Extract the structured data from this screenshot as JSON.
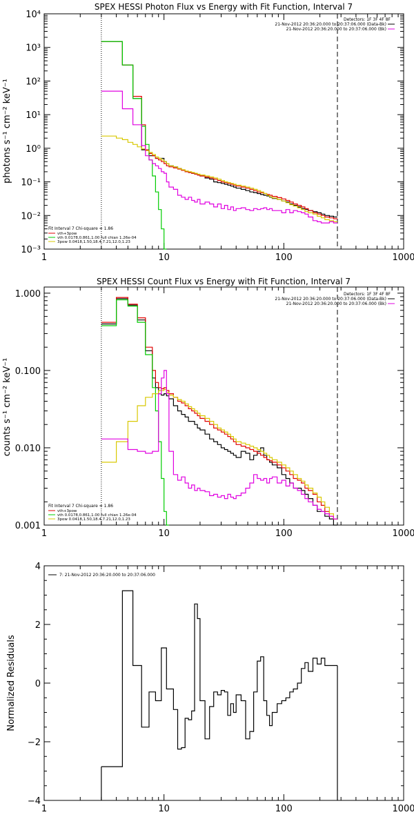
{
  "chart_data": [
    {
      "type": "line",
      "title": "SPEX HESSI Photon Flux vs Energy with Fit Function, Interval 7",
      "ylabel": "photons s⁻¹ cm⁻² keV⁻¹",
      "xlabel": "",
      "xscale": "log",
      "yscale": "log",
      "xlim": [
        1,
        1000
      ],
      "ylim": [
        0.001,
        10000
      ],
      "xticklabels": [
        "1",
        "10",
        "100",
        "1000"
      ],
      "yticklabels": [
        "10⁻³",
        "10⁻²",
        "10⁻¹",
        "10⁰",
        "10¹",
        "10²",
        "10³",
        "10⁴"
      ],
      "vlines": [
        3.0,
        280
      ],
      "legend_top_right": {
        "header": "Detectors: 1F 3F 4F 8F",
        "entries": [
          {
            "label": "21-Nov-2012 20:36:20.000 to 20:37:06.000 (Data-Bk)",
            "color": "#000000"
          },
          {
            "label": "21-Nov-2012 20:36:20.000 to 20:37:06.000 (Bk)",
            "color": "#e000e0"
          }
        ]
      },
      "legend_bottom_left": {
        "header": "Fit Interval 7   Chi-square = 1.86",
        "entries": [
          {
            "label": "vth+3pow",
            "color": "#e00000"
          },
          {
            "label": "vth 0.0178,0.861,1.00  full chian 1.26e-04",
            "color": "#00cc00"
          },
          {
            "label": "3pow 0.0418,1.50,18.4,7.21,12.0,1.23",
            "color": "#d8c800"
          }
        ]
      },
      "edges": [
        3.0,
        3.5,
        4.0,
        4.5,
        5.0,
        5.5,
        6.0,
        6.5,
        7.0,
        7.5,
        8.0,
        8.5,
        9.0,
        9.5,
        10.0,
        10.5,
        11.0,
        12.0,
        13.0,
        14.0,
        15.0,
        16.0,
        17.0,
        18.0,
        19.0,
        20.0,
        22.0,
        24.0,
        26.0,
        28.0,
        30.0,
        32.0,
        34.0,
        36.0,
        38.0,
        40.0,
        44.0,
        48.0,
        52.0,
        56.0,
        60.0,
        64.0,
        68.0,
        72.0,
        76.0,
        80.0,
        88.0,
        96.0,
        104.0,
        112.0,
        120.0,
        130.0,
        140.0,
        150.0,
        160.0,
        175.0,
        190.0,
        205.0,
        220.0,
        240.0,
        260.0,
        280.0
      ],
      "series": [
        {
          "name": "Data-Bk",
          "color": "#000000",
          "values": [
            1500,
            1500,
            1500,
            300,
            300,
            30,
            30,
            0.9,
            0.9,
            0.6,
            0.6,
            0.5,
            0.5,
            0.5,
            0.4,
            0.35,
            0.3,
            0.28,
            0.25,
            0.22,
            0.2,
            0.19,
            0.18,
            0.17,
            0.16,
            0.15,
            0.13,
            0.12,
            0.1,
            0.095,
            0.09,
            0.085,
            0.08,
            0.075,
            0.07,
            0.065,
            0.06,
            0.055,
            0.05,
            0.048,
            0.045,
            0.042,
            0.04,
            0.038,
            0.035,
            0.032,
            0.03,
            0.027,
            0.025,
            0.022,
            0.02,
            0.018,
            0.016,
            0.015,
            0.014,
            0.013,
            0.012,
            0.011,
            0.01,
            0.0095,
            0.009
          ]
        },
        {
          "name": "vth+3pow",
          "color": "#e00000",
          "values": [
            1500,
            1500,
            1500,
            300,
            300,
            35,
            35,
            5,
            0.9,
            0.7,
            0.6,
            0.5,
            0.45,
            0.4,
            0.35,
            0.3,
            0.28,
            0.26,
            0.24,
            0.22,
            0.2,
            0.19,
            0.18,
            0.17,
            0.16,
            0.15,
            0.14,
            0.13,
            0.12,
            0.11,
            0.1,
            0.095,
            0.09,
            0.085,
            0.08,
            0.075,
            0.07,
            0.065,
            0.06,
            0.055,
            0.05,
            0.048,
            0.045,
            0.042,
            0.04,
            0.037,
            0.034,
            0.031,
            0.028,
            0.025,
            0.022,
            0.02,
            0.018,
            0.016,
            0.014,
            0.012,
            0.011,
            0.01,
            0.009,
            0.0085,
            0.008
          ]
        },
        {
          "name": "vth",
          "color": "#00cc00",
          "values": [
            1500,
            1500,
            1500,
            300,
            300,
            30,
            30,
            4.5,
            1.3,
            0.45,
            0.15,
            0.05,
            0.015,
            0.004,
            0.001
          ]
        },
        {
          "name": "3pow",
          "color": "#d8c800",
          "values": [
            2.3,
            2.3,
            2.0,
            1.8,
            1.5,
            1.3,
            1.1,
            0.95,
            0.85,
            0.75,
            0.65,
            0.55,
            0.5,
            0.45,
            0.4,
            0.35,
            0.3,
            0.28,
            0.25,
            0.23,
            0.21,
            0.2,
            0.19,
            0.18,
            0.17,
            0.16,
            0.15,
            0.14,
            0.13,
            0.12,
            0.11,
            0.1,
            0.095,
            0.09,
            0.085,
            0.08,
            0.075,
            0.07,
            0.065,
            0.06,
            0.055,
            0.05,
            0.045,
            0.04,
            0.036,
            0.033,
            0.03,
            0.027,
            0.024,
            0.021,
            0.019,
            0.017,
            0.015,
            0.013,
            0.012,
            0.011,
            0.0095,
            0.0085,
            0.0075,
            0.007,
            0.0065
          ]
        },
        {
          "name": "Bk",
          "color": "#e000e0",
          "values": [
            50,
            50,
            50,
            15,
            15,
            5,
            5,
            1.2,
            0.6,
            0.45,
            0.35,
            0.3,
            0.25,
            0.2,
            0.18,
            0.1,
            0.07,
            0.06,
            0.04,
            0.035,
            0.03,
            0.035,
            0.028,
            0.025,
            0.03,
            0.022,
            0.025,
            0.022,
            0.018,
            0.022,
            0.016,
            0.02,
            0.015,
            0.018,
            0.014,
            0.016,
            0.017,
            0.015,
            0.014,
            0.016,
            0.015,
            0.016,
            0.017,
            0.015,
            0.016,
            0.014,
            0.014,
            0.012,
            0.015,
            0.012,
            0.014,
            0.013,
            0.012,
            0.011,
            0.009,
            0.007,
            0.0065,
            0.006,
            0.006,
            0.0065,
            0.006
          ]
        }
      ]
    },
    {
      "type": "line",
      "title": "SPEX HESSI Count Flux vs Energy with Fit Function, Interval 7",
      "ylabel": "counts s⁻¹ cm⁻² keV⁻¹",
      "xlabel": "",
      "xscale": "log",
      "yscale": "log",
      "xlim": [
        1,
        1000
      ],
      "ylim": [
        0.001,
        1.2
      ],
      "xticklabels": [
        "1",
        "10",
        "100",
        "1000"
      ],
      "yticklabels": [
        "0.001",
        "0.010",
        "0.100",
        "1.000"
      ],
      "vlines": [
        3.0,
        280
      ],
      "legend_top_right": {
        "header": "Detectors: 1F 3F 4F 8F",
        "entries": [
          {
            "label": "21-Nov-2012 20:36:20.000 to 20:37:06.000 (Data-Bk)",
            "color": "#000000"
          },
          {
            "label": "21-Nov-2012 20:36:20.000 to 20:37:06.000 (Bk)",
            "color": "#e000e0"
          }
        ]
      },
      "legend_bottom_left": {
        "header": "Fit Interval 7   Chi-square = 1.86",
        "entries": [
          {
            "label": "vth+3pow",
            "color": "#e00000"
          },
          {
            "label": "vth 0.0178,0.861,1.00  full chian 1.26e-04",
            "color": "#00cc00"
          },
          {
            "label": "3pow 0.0418,1.50,18.4,7.21,12.0,1.23",
            "color": "#d8c800"
          }
        ]
      },
      "edges": [
        3.0,
        3.5,
        4.0,
        4.5,
        5.0,
        5.5,
        6.0,
        6.5,
        7.0,
        7.5,
        8.0,
        8.5,
        9.0,
        9.5,
        10.0,
        10.5,
        11.0,
        12.0,
        13.0,
        14.0,
        15.0,
        16.0,
        17.0,
        18.0,
        19.0,
        20.0,
        22.0,
        24.0,
        26.0,
        28.0,
        30.0,
        32.0,
        34.0,
        36.0,
        38.0,
        40.0,
        44.0,
        48.0,
        52.0,
        56.0,
        60.0,
        64.0,
        68.0,
        72.0,
        76.0,
        80.0,
        88.0,
        96.0,
        104.0,
        112.0,
        120.0,
        130.0,
        140.0,
        150.0,
        160.0,
        175.0,
        190.0,
        205.0,
        220.0,
        240.0,
        260.0,
        280.0
      ],
      "series": [
        {
          "name": "Data-Bk",
          "color": "#000000",
          "values": [
            0.4,
            0.4,
            0.85,
            0.85,
            0.7,
            0.7,
            0.45,
            0.45,
            0.18,
            0.18,
            0.08,
            0.06,
            0.05,
            0.048,
            0.05,
            0.047,
            0.043,
            0.035,
            0.03,
            0.027,
            0.025,
            0.022,
            0.022,
            0.02,
            0.018,
            0.017,
            0.015,
            0.013,
            0.012,
            0.011,
            0.01,
            0.0095,
            0.009,
            0.0085,
            0.008,
            0.0075,
            0.009,
            0.0085,
            0.007,
            0.008,
            0.009,
            0.01,
            0.008,
            0.007,
            0.0065,
            0.006,
            0.0055,
            0.0045,
            0.004,
            0.0035,
            0.003,
            0.003,
            0.0028,
            0.0025,
            0.0022,
            0.0018,
            0.0015,
            0.0015,
            0.0013,
            0.0012,
            0.001
          ]
        },
        {
          "name": "vth+3pow",
          "color": "#e00000",
          "values": [
            0.42,
            0.42,
            0.88,
            0.88,
            0.72,
            0.72,
            0.48,
            0.48,
            0.2,
            0.2,
            0.1,
            0.07,
            0.06,
            0.058,
            0.06,
            0.055,
            0.05,
            0.045,
            0.04,
            0.038,
            0.035,
            0.032,
            0.03,
            0.028,
            0.026,
            0.024,
            0.022,
            0.02,
            0.018,
            0.017,
            0.016,
            0.015,
            0.014,
            0.013,
            0.012,
            0.011,
            0.0105,
            0.01,
            0.0095,
            0.009,
            0.0085,
            0.008,
            0.0075,
            0.007,
            0.0068,
            0.0065,
            0.006,
            0.0055,
            0.005,
            0.0045,
            0.004,
            0.0038,
            0.0035,
            0.003,
            0.0028,
            0.0025,
            0.002,
            0.0018,
            0.0015,
            0.0013,
            0.0012
          ]
        },
        {
          "name": "vth",
          "color": "#00cc00",
          "values": [
            0.38,
            0.38,
            0.82,
            0.82,
            0.68,
            0.68,
            0.42,
            0.42,
            0.16,
            0.16,
            0.06,
            0.03,
            0.012,
            0.004,
            0.0015,
            0.001
          ]
        },
        {
          "name": "3pow",
          "color": "#d8c800",
          "values": [
            0.0065,
            0.0065,
            0.012,
            0.012,
            0.022,
            0.022,
            0.035,
            0.035,
            0.045,
            0.045,
            0.05,
            0.05,
            0.055,
            0.055,
            0.057,
            0.052,
            0.048,
            0.045,
            0.042,
            0.04,
            0.037,
            0.034,
            0.032,
            0.03,
            0.028,
            0.026,
            0.024,
            0.022,
            0.02,
            0.018,
            0.017,
            0.016,
            0.015,
            0.014,
            0.013,
            0.012,
            0.0115,
            0.011,
            0.0105,
            0.01,
            0.0095,
            0.009,
            0.0085,
            0.008,
            0.0075,
            0.007,
            0.0065,
            0.006,
            0.0055,
            0.005,
            0.0045,
            0.004,
            0.0037,
            0.0033,
            0.003,
            0.0026,
            0.0023,
            0.002,
            0.0017,
            0.0014,
            0.0012
          ]
        },
        {
          "name": "Bk",
          "color": "#e000e0",
          "values": [
            0.013,
            0.013,
            0.013,
            0.013,
            0.0095,
            0.0095,
            0.009,
            0.009,
            0.0085,
            0.0085,
            0.009,
            0.009,
            0.05,
            0.08,
            0.1,
            0.05,
            0.009,
            0.0045,
            0.0038,
            0.0042,
            0.0035,
            0.003,
            0.0033,
            0.0028,
            0.003,
            0.0028,
            0.0027,
            0.0024,
            0.0025,
            0.0023,
            0.0024,
            0.0022,
            0.0025,
            0.0023,
            0.0022,
            0.0024,
            0.0026,
            0.003,
            0.0035,
            0.0045,
            0.004,
            0.0038,
            0.004,
            0.0035,
            0.004,
            0.0042,
            0.0035,
            0.0038,
            0.0032,
            0.0035,
            0.003,
            0.0028,
            0.0025,
            0.0022,
            0.002,
            0.0018,
            0.0016,
            0.0015,
            0.0014,
            0.0013,
            0.0012
          ]
        }
      ]
    },
    {
      "type": "line",
      "title": "",
      "ylabel": "Normalized Residuals",
      "xlabel": "",
      "xscale": "log",
      "yscale": "linear",
      "xlim": [
        1,
        1000
      ],
      "ylim": [
        -4,
        4
      ],
      "xticklabels": [
        "1",
        "10",
        "100",
        "1000"
      ],
      "yticklabels": [
        "−4",
        "−2",
        "0",
        "2",
        "4"
      ],
      "legend_top_left": {
        "entries": [
          {
            "label": "7: 21-Nov-2012 20:36:20.000 to 20:37:06.000",
            "color": "#000000"
          }
        ]
      },
      "edges": [
        3.0,
        3.5,
        4.0,
        4.5,
        5.0,
        5.5,
        6.0,
        6.5,
        7.0,
        7.5,
        8.0,
        8.5,
        9.0,
        9.5,
        10.0,
        10.5,
        11.0,
        12.0,
        13.0,
        14.0,
        15.0,
        16.0,
        17.0,
        18.0,
        19.0,
        20.0,
        22.0,
        24.0,
        26.0,
        28.0,
        30.0,
        32.0,
        34.0,
        36.0,
        38.0,
        40.0,
        44.0,
        48.0,
        52.0,
        56.0,
        60.0,
        64.0,
        68.0,
        72.0,
        76.0,
        80.0,
        88.0,
        96.0,
        104.0,
        112.0,
        120.0,
        130.0,
        140.0,
        150.0,
        160.0,
        175.0,
        190.0,
        205.0,
        220.0,
        240.0,
        260.0,
        280.0
      ],
      "series": [
        {
          "name": "7: 21-Nov-2012 20:36:20.000 to 20:37:06.000",
          "color": "#000000",
          "values": [
            -2.85,
            -2.85,
            -2.85,
            3.15,
            3.15,
            0.6,
            0.6,
            -1.5,
            -1.5,
            -0.3,
            -0.3,
            -0.6,
            -0.6,
            1.2,
            1.2,
            -0.2,
            -0.2,
            -0.9,
            -2.25,
            -2.2,
            -1.2,
            -1.25,
            -0.95,
            2.7,
            2.2,
            -0.6,
            -1.9,
            -0.8,
            -0.3,
            -0.4,
            -0.25,
            -0.3,
            -1.1,
            -0.7,
            -1.0,
            -0.4,
            -0.6,
            -1.9,
            -1.65,
            -0.3,
            0.75,
            0.9,
            -0.6,
            -1.1,
            -1.45,
            -1.0,
            -0.7,
            -0.6,
            -0.5,
            -0.3,
            -0.2,
            0.0,
            0.5,
            0.7,
            0.4,
            0.85,
            0.65,
            0.85,
            0.6,
            0.6,
            0.6
          ]
        }
      ]
    }
  ]
}
